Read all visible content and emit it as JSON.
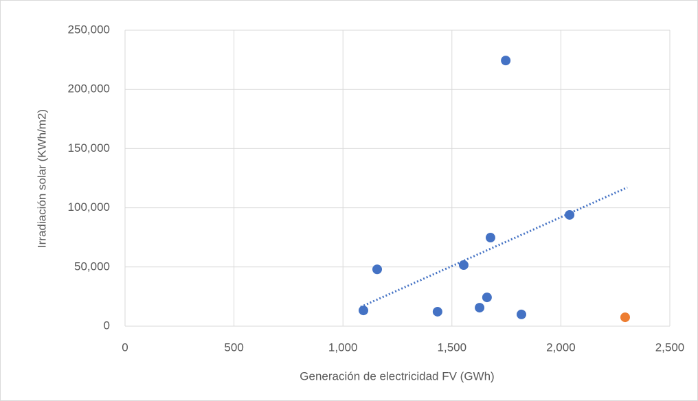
{
  "chart_data": {
    "type": "scatter",
    "x_label": "Generación de electricidad FV (GWh)",
    "y_label": "Irradiación solar (KWh/m2)",
    "xlim": [
      0,
      2500
    ],
    "xticks": [
      0,
      500,
      {
        "value": 1000,
        "label": "1,000"
      },
      {
        "value": 1500,
        "label": "1,500"
      },
      {
        "value": 2000,
        "label": "2,000"
      },
      {
        "value": 2500,
        "label": "2,500"
      }
    ],
    "ylim": [
      0,
      250000
    ],
    "yticks": [
      0,
      {
        "value": 50000,
        "label": "50,000"
      },
      {
        "value": 100000,
        "label": "100,000"
      },
      {
        "value": 150000,
        "label": "150,000"
      },
      {
        "value": 200000,
        "label": "200,000"
      },
      {
        "value": 250000,
        "label": "250,000"
      }
    ],
    "grid": true,
    "series": [
      {
        "color": "#4472c4",
        "x": [
          1094,
          1157,
          1434,
          1554,
          1627,
          1661,
          1677,
          1747,
          1819,
          2040
        ],
        "values": [
          13300,
          48000,
          12200,
          51600,
          15600,
          24300,
          74800,
          224400,
          9900,
          94000
        ]
      },
      {
        "color": "#ed7d31",
        "x": [
          2295
        ],
        "values": [
          7500
        ]
      }
    ],
    "trendline": {
      "color": "#4472c4",
      "style": "dotted",
      "x": [
        1081,
        2305
      ],
      "values": [
        16200,
        117200
      ]
    }
  }
}
